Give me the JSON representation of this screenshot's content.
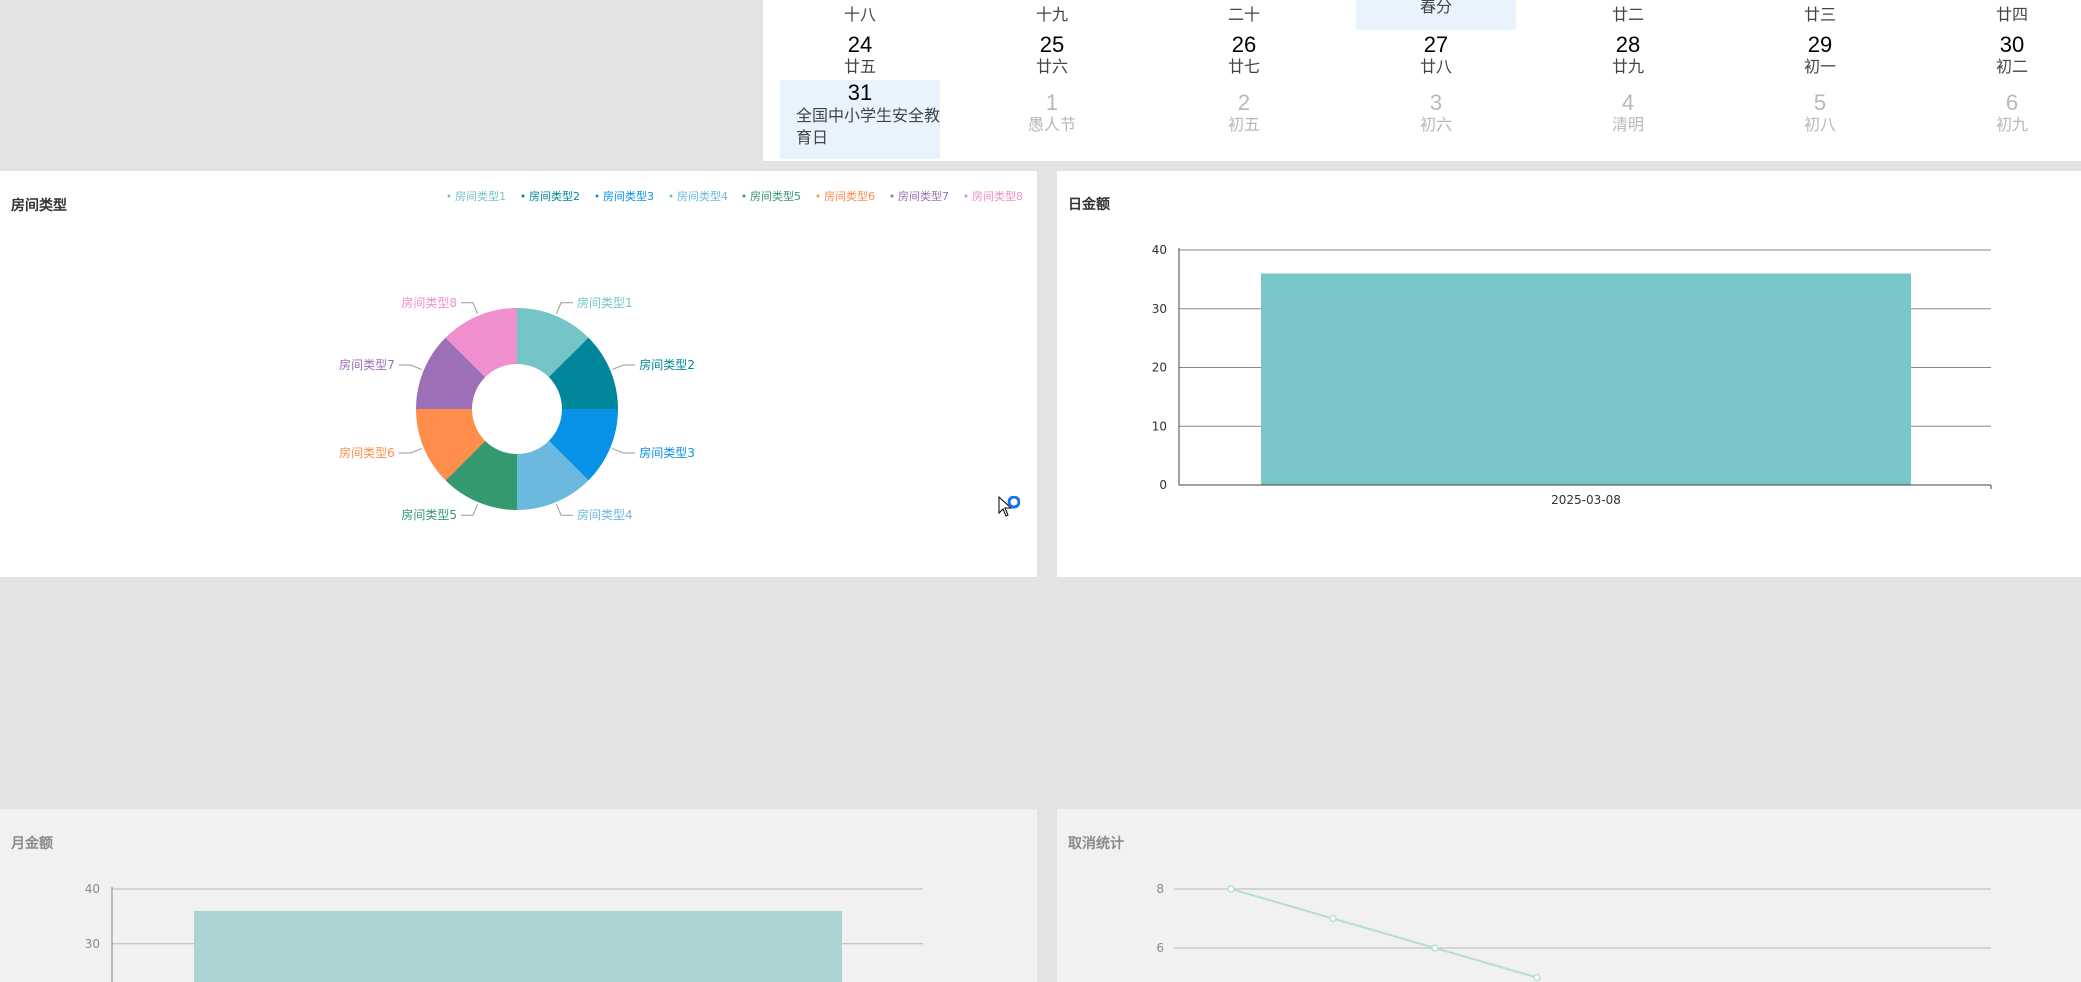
{
  "calendar": {
    "row0": [
      {
        "lunar": "十八"
      },
      {
        "lunar": "十九"
      },
      {
        "lunar": "二十"
      },
      {
        "lunar": "春分"
      },
      {
        "lunar": "廿二"
      },
      {
        "lunar": "廿三"
      },
      {
        "lunar": "廿四"
      }
    ],
    "row1": [
      {
        "day": "24",
        "lunar": "廿五"
      },
      {
        "day": "25",
        "lunar": "廿六"
      },
      {
        "day": "26",
        "lunar": "廿七"
      },
      {
        "day": "27",
        "lunar": "廿八"
      },
      {
        "day": "28",
        "lunar": "廿九"
      },
      {
        "day": "29",
        "lunar": "初一"
      },
      {
        "day": "30",
        "lunar": "初二"
      }
    ],
    "row2": [
      {
        "day": "31",
        "lunar": "全国中小学生安全教育日"
      },
      {
        "day": "1",
        "lunar": "愚人节"
      },
      {
        "day": "2",
        "lunar": "初五"
      },
      {
        "day": "3",
        "lunar": "初六"
      },
      {
        "day": "4",
        "lunar": "清明"
      },
      {
        "day": "5",
        "lunar": "初八"
      },
      {
        "day": "6",
        "lunar": "初九"
      }
    ]
  },
  "colors": {
    "teal": "#73c5c8",
    "dark_teal": "#00879b",
    "blue": "#0792e8",
    "light_blue": "#6cb9e0",
    "green": "#34996e",
    "orange": "#ff8d4c",
    "purple": "#9d6fb6",
    "pink": "#ef8fce",
    "highlight": "#e9f3fd"
  },
  "room_type_panel": {
    "title": "房间类型",
    "chart_data": {
      "type": "pie",
      "variant": "donut",
      "categories": [
        "房间类型1",
        "房间类型2",
        "房间类型3",
        "房间类型4",
        "房间类型5",
        "房间类型6",
        "房间类型7",
        "房间类型8"
      ],
      "values": [
        1,
        1,
        1,
        1,
        1,
        1,
        1,
        1
      ],
      "colors": [
        "#73c5c8",
        "#00879b",
        "#0792e8",
        "#6cb9e0",
        "#34996e",
        "#ff8d4c",
        "#9d6fb6",
        "#ef8fce"
      ],
      "legend": "top-right"
    }
  },
  "daily_amount_panel": {
    "title": "日金额",
    "chart_data": {
      "type": "bar",
      "categories": [
        "2025-03-08"
      ],
      "values": [
        36
      ],
      "ylim": [
        0,
        40
      ],
      "yticks": [
        "0",
        "10",
        "20",
        "30",
        "40"
      ],
      "color": "#78c6c9",
      "grid": true
    }
  },
  "monthly_amount_panel": {
    "title": "月金额",
    "chart_data": {
      "type": "bar",
      "values": [
        36
      ],
      "ylim": [
        0,
        40
      ],
      "yticks": [
        "30",
        "40"
      ],
      "color": "#acd4d5",
      "grid": true
    }
  },
  "cancel_stats_panel": {
    "title": "取消统计",
    "chart_data": {
      "type": "line",
      "x": [
        1,
        2,
        3,
        4
      ],
      "values": [
        8,
        7,
        6,
        5
      ],
      "yticks": [
        "6",
        "8"
      ],
      "color": "#b5dedb",
      "grid": true
    }
  }
}
